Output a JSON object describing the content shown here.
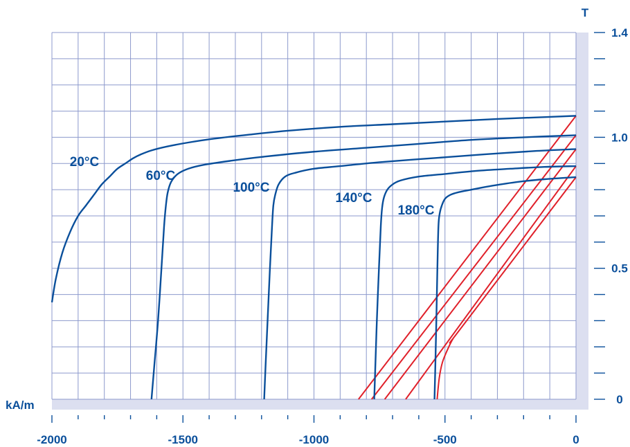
{
  "chart_data": {
    "type": "line",
    "title": "",
    "xlabel": "kA/m",
    "ylabel": "T",
    "xlim": [
      -2000,
      0
    ],
    "ylim": [
      0,
      1.4
    ],
    "x_ticks": [
      "-2000",
      "-1500",
      "-1000",
      "-500",
      "0"
    ],
    "x_tick_values": [
      -2000,
      -1500,
      -1000,
      -500,
      0
    ],
    "y_ticks": [
      "0",
      "0.5",
      "1.0",
      "1.4"
    ],
    "y_tick_values": [
      0,
      0.5,
      1.0,
      1.4
    ],
    "grid": true,
    "colors": {
      "demag": "#0a4f9b",
      "recoil": "#e0202a",
      "grid": "#8c99cc",
      "axis_band": "#dcdff0",
      "text": "#0a4f9b"
    },
    "series": [
      {
        "name": "20°C",
        "x": [
          -2000,
          -1985,
          -1960,
          -1930,
          -1900,
          -1870,
          -1840,
          -1810,
          -1780,
          -1750,
          -1720,
          -1690,
          -1660,
          -1620,
          -1560,
          -1480,
          -1380,
          -1250,
          -1100,
          -900,
          -700,
          -500,
          -300,
          -100,
          0
        ],
        "y": [
          0.37,
          0.46,
          0.56,
          0.64,
          0.7,
          0.74,
          0.78,
          0.82,
          0.85,
          0.88,
          0.9,
          0.92,
          0.935,
          0.95,
          0.965,
          0.98,
          0.995,
          1.01,
          1.025,
          1.04,
          1.05,
          1.06,
          1.07,
          1.078,
          1.082
        ]
      },
      {
        "name": "60°C",
        "x": [
          -1620,
          -1610,
          -1595,
          -1582,
          -1572,
          -1565,
          -1558,
          -1545,
          -1520,
          -1480,
          -1420,
          -1320,
          -1200,
          -1000,
          -800,
          -600,
          -400,
          -200,
          0
        ],
        "y": [
          0.0,
          0.12,
          0.3,
          0.5,
          0.66,
          0.74,
          0.79,
          0.83,
          0.86,
          0.88,
          0.895,
          0.91,
          0.925,
          0.945,
          0.96,
          0.975,
          0.99,
          1.0,
          1.008
        ]
      },
      {
        "name": "100°C",
        "x": [
          -1190,
          -1185,
          -1177,
          -1168,
          -1160,
          -1155,
          -1148,
          -1135,
          -1110,
          -1070,
          -1000,
          -900,
          -750,
          -550,
          -350,
          -150,
          0
        ],
        "y": [
          0.0,
          0.12,
          0.3,
          0.5,
          0.66,
          0.74,
          0.78,
          0.82,
          0.85,
          0.865,
          0.88,
          0.89,
          0.905,
          0.92,
          0.935,
          0.948,
          0.955
        ]
      },
      {
        "name": "140°C",
        "x": [
          -770,
          -766,
          -760,
          -752,
          -745,
          -740,
          -733,
          -720,
          -700,
          -670,
          -600,
          -500,
          -380,
          -250,
          -120,
          0
        ],
        "y": [
          0.0,
          0.12,
          0.3,
          0.5,
          0.66,
          0.73,
          0.77,
          0.8,
          0.82,
          0.835,
          0.85,
          0.86,
          0.872,
          0.88,
          0.887,
          0.89
        ]
      },
      {
        "name": "180°C",
        "x": [
          -540,
          -537,
          -533,
          -529,
          -525,
          -520,
          -512,
          -500,
          -480,
          -450,
          -400,
          -320,
          -220,
          -120,
          0
        ],
        "y": [
          0.0,
          0.12,
          0.3,
          0.5,
          0.66,
          0.71,
          0.74,
          0.765,
          0.78,
          0.79,
          0.8,
          0.815,
          0.83,
          0.84,
          0.848
        ]
      }
    ],
    "recoil_lines": [
      {
        "x": [
          -830,
          0
        ],
        "y": [
          0.0,
          1.082
        ]
      },
      {
        "x": [
          -780,
          0
        ],
        "y": [
          0.0,
          1.008
        ]
      },
      {
        "x": [
          -730,
          0
        ],
        "y": [
          0.0,
          0.955
        ]
      },
      {
        "x": [
          -650,
          0
        ],
        "y": [
          0.0,
          0.89
        ]
      },
      {
        "x": [
          -530,
          -522,
          -510,
          -490,
          -470,
          -440,
          0
        ],
        "y": [
          0.0,
          0.08,
          0.14,
          0.19,
          0.23,
          0.27,
          0.848
        ]
      }
    ]
  }
}
